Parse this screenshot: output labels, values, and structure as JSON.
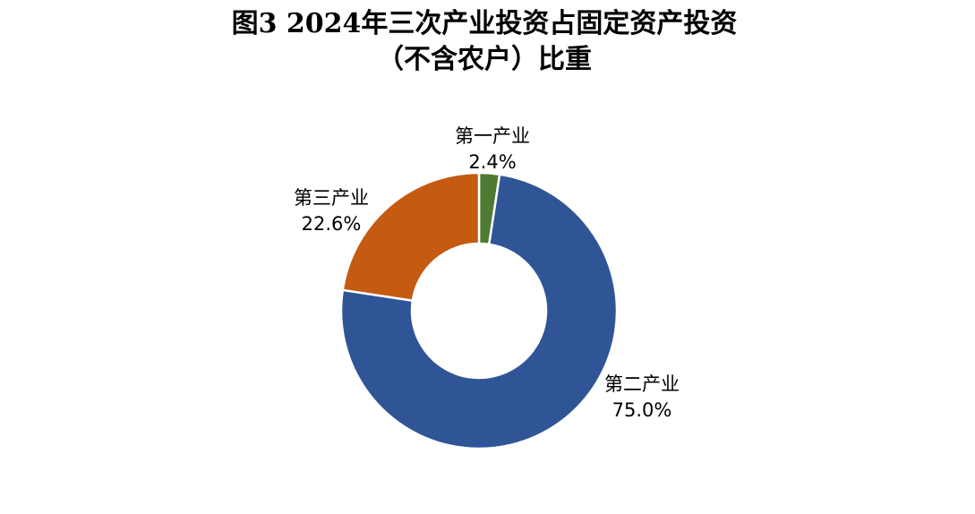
{
  "chart_data": {
    "type": "donut",
    "title": [
      "图3 2024年三次产业投资占固定资产投资",
      "（不含农户）比重"
    ],
    "categories": [
      "第一产业",
      "第二产业",
      "第三产业"
    ],
    "values": [
      2.4,
      75.0,
      22.6
    ],
    "value_labels": [
      "2.4%",
      "75.0%",
      "22.6%"
    ],
    "colors": [
      "#4e7a33",
      "#2f5597",
      "#c55a11"
    ]
  }
}
